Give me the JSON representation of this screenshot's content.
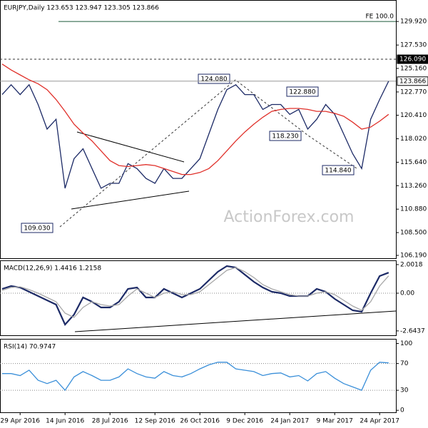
{
  "chart_data": [
    {
      "type": "line",
      "title": "EURJPY,Daily 123.653 123.947 123.305 123.866",
      "watermark": "ActionForex.com",
      "annotations": [
        "124.080",
        "122.880",
        "118.230",
        "114.840",
        "109.030"
      ],
      "fe_line": {
        "label": "FE 100.0",
        "value": 129.92
      },
      "levels": [
        {
          "value": 126.09,
          "label": "126.090"
        },
        {
          "value": 123.866,
          "label": "123.866"
        }
      ],
      "categories": [
        null,
        null,
        "29 Apr 2016",
        null,
        null,
        null,
        null,
        "14 Jun 2016",
        null,
        null,
        null,
        null,
        "28 Jul 2016",
        null,
        null,
        null,
        null,
        "12 Sep 2016",
        null,
        null,
        null,
        null,
        "26 Oct 2016",
        null,
        null,
        null,
        null,
        "9 Dec 2016",
        null,
        null,
        null,
        null,
        "24 Jan 2017",
        null,
        null,
        null,
        null,
        "9 Mar 2017",
        null,
        null,
        null,
        null,
        "24 Apr 2017",
        null
      ],
      "series": [
        {
          "name": "EURJPY",
          "color": "#1c2a66",
          "values": [
            122.5,
            123.5,
            122.5,
            123.5,
            121.5,
            119,
            120,
            113,
            116,
            117,
            115,
            113,
            113.5,
            113.5,
            115.5,
            115,
            114,
            113.5,
            115,
            114,
            114,
            115,
            116,
            118.5,
            121,
            123,
            123.5,
            122.5,
            122.5,
            121,
            121.5,
            121.5,
            120.5,
            121,
            119,
            120,
            121.5,
            120.5,
            118.5,
            116.5,
            115,
            120,
            122,
            123.866
          ]
        },
        {
          "name": "MA",
          "color": "#e0302a",
          "values": [
            125.6,
            125.0,
            124.5,
            124.0,
            123.6,
            123.0,
            122.0,
            120.8,
            119.5,
            118.6,
            117.8,
            116.8,
            115.8,
            115.3,
            115.2,
            115.3,
            115.4,
            115.3,
            115.0,
            114.7,
            114.4,
            114.4,
            114.6,
            115.0,
            115.8,
            116.8,
            117.8,
            118.7,
            119.5,
            120.2,
            120.8,
            121.0,
            121.1,
            121.1,
            121.0,
            120.8,
            120.8,
            120.6,
            120.3,
            119.7,
            119.0,
            119.2,
            119.8,
            120.5
          ]
        }
      ],
      "ylim": [
        105.9,
        132.1
      ],
      "yticks": [
        {
          "value": 129.92,
          "label": "129.920"
        },
        {
          "value": 127.53,
          "label": "127.530"
        },
        {
          "value": 125.16,
          "label": "125.160"
        },
        {
          "value": 122.77,
          "label": "122.770"
        },
        {
          "value": 120.41,
          "label": "120.410"
        },
        {
          "value": 118.02,
          "label": "118.020"
        },
        {
          "value": 115.64,
          "label": "115.640"
        },
        {
          "value": 113.26,
          "label": "113.260"
        },
        {
          "value": 110.88,
          "label": "110.880"
        },
        {
          "value": 108.5,
          "label": "108.500"
        },
        {
          "value": 106.19,
          "label": "106.190"
        }
      ]
    },
    {
      "type": "line",
      "title": "MACD(12,26,9) 1.4416 1.2158",
      "series": [
        {
          "name": "MACD",
          "color": "#1c2a66",
          "values": [
            0.3,
            0.5,
            0.4,
            0.1,
            -0.2,
            -0.5,
            -0.8,
            -2.2,
            -1.5,
            -0.3,
            -0.6,
            -1.0,
            -1.0,
            -0.6,
            0.3,
            0.4,
            -0.3,
            -0.3,
            0.3,
            0.0,
            -0.3,
            0.0,
            0.3,
            0.9,
            1.5,
            1.9,
            1.8,
            1.3,
            0.8,
            0.4,
            0.1,
            0.0,
            -0.2,
            -0.2,
            -0.2,
            0.3,
            0.1,
            -0.4,
            -0.8,
            -1.2,
            -1.3,
            0.0,
            1.2,
            1.4416
          ]
        },
        {
          "name": "Signal",
          "color": "#a8a8a8",
          "values": [
            0.2,
            0.4,
            0.45,
            0.25,
            0.0,
            -0.3,
            -0.6,
            -1.4,
            -1.7,
            -1.0,
            -0.6,
            -0.8,
            -0.9,
            -0.8,
            -0.2,
            0.3,
            0.0,
            -0.3,
            0.0,
            0.1,
            -0.1,
            -0.1,
            0.1,
            0.6,
            1.1,
            1.6,
            1.8,
            1.5,
            1.1,
            0.6,
            0.3,
            0.1,
            -0.1,
            -0.2,
            -0.2,
            0.0,
            0.1,
            -0.1,
            -0.5,
            -0.9,
            -1.2,
            -0.6,
            0.5,
            1.2158
          ]
        }
      ],
      "reference_lines": [
        0
      ],
      "ylim": [
        -2.95,
        2.3
      ],
      "yticks": [
        2.0018,
        {
          "value": 0,
          "label": "0.00"
        },
        -2.6437
      ]
    },
    {
      "type": "line",
      "title": "RSI(14) 70.9747",
      "series": [
        {
          "name": "RSI",
          "color": "#3a8fd9",
          "values": [
            55,
            55,
            52,
            60,
            45,
            40,
            45,
            30,
            50,
            58,
            52,
            45,
            45,
            50,
            62,
            55,
            50,
            48,
            58,
            52,
            50,
            55,
            62,
            68,
            72,
            72,
            62,
            60,
            58,
            52,
            55,
            56,
            50,
            52,
            44,
            55,
            58,
            48,
            40,
            35,
            30,
            60,
            72,
            70.9747
          ]
        }
      ],
      "reference_lines": [
        70,
        30
      ],
      "ylim": [
        -3,
        107
      ],
      "yticks": [
        100,
        70,
        30,
        0
      ]
    }
  ]
}
